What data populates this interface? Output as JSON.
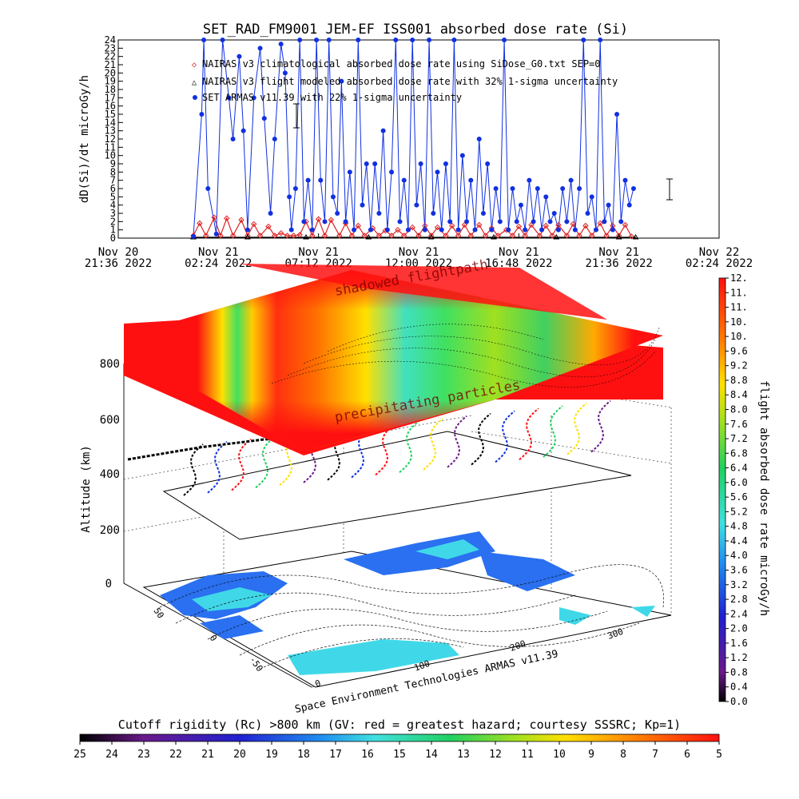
{
  "title": "SET_RAD_FM9001  JEM-EF ISS001 absorbed dose rate (Si)",
  "legend_items": [
    "NAIRAS v3 climatological absorbed dose rate using SiDose_G0.txt SEP=0",
    "NAIRAS v3 flight modeled absorbed dose rate with 32% 1-sigma uncertainty",
    "SET ARMAS v11.39 with 22% 1-sigma uncertainty"
  ],
  "annotations": {
    "shadowed": "shadowed flightpath",
    "precipitating": "precipitating particles",
    "credit": "Space Environment Technologies ARMAS v11.39"
  },
  "colorbar_right": {
    "label": "flight absorbed dose rate microGy/h",
    "ticks": [
      "0.0",
      "0.4",
      "0.8",
      "1.2",
      "1.6",
      "2.0",
      "2.4",
      "2.8",
      "3.2",
      "3.6",
      "4.0",
      "4.4",
      "4.8",
      "5.2",
      "5.6",
      "6.0",
      "6.4",
      "6.8",
      "7.2",
      "7.6",
      "8.0",
      "8.4",
      "8.8",
      "9.2",
      "9.6",
      "10.",
      "10.",
      "11.",
      "11.",
      "12."
    ]
  },
  "colorbar_bottom": {
    "label": "Cutoff rigidity (Rc) >800 km (GV: red = greatest hazard; courtesy SSSRC; Kp=1)",
    "ticks": [
      "25",
      "24",
      "23",
      "22",
      "21",
      "20",
      "19",
      "18",
      "17",
      "16",
      "15",
      "14",
      "13",
      "12",
      "11",
      "10",
      "9",
      "8",
      "7",
      "6",
      "5"
    ]
  },
  "axes3d": {
    "zlabel": "Altitude (km)",
    "zticks": [
      "0",
      "200",
      "400",
      "600",
      "800"
    ],
    "lat_ticks": [
      "50",
      "0",
      "-50"
    ],
    "lon_ticks": [
      "0",
      "100",
      "200",
      "300"
    ]
  },
  "chart_data": {
    "type": "scatter",
    "title": "SET_RAD_FM9001  JEM-EF ISS001 absorbed dose rate (Si)",
    "xlabel": "",
    "ylabel": "dD(Si)/dt microGy/h",
    "ylim": [
      0,
      24
    ],
    "yticks": [
      "0",
      "1",
      "2",
      "3",
      "4",
      "5",
      "6",
      "7",
      "8",
      "9",
      "10",
      "11",
      "12",
      "13",
      "14",
      "15",
      "16",
      "17",
      "18",
      "19",
      "20",
      "21",
      "22",
      "23",
      "24"
    ],
    "xticks": [
      {
        "day": "Nov 20",
        "time": "21:36 2022"
      },
      {
        "day": "Nov 21",
        "time": "02:24 2022"
      },
      {
        "day": "Nov 21",
        "time": "07:12 2022"
      },
      {
        "day": "Nov 21",
        "time": "12:00 2022"
      },
      {
        "day": "Nov 21",
        "time": "16:48 2022"
      },
      {
        "day": "Nov 21",
        "time": "21:36 2022"
      },
      {
        "day": "Nov 22",
        "time": "02:24 2022"
      }
    ],
    "xrange_hours": [
      0,
      28.8
    ],
    "series": [
      {
        "name": "NAIRAS v3 climatological absorbed dose rate using SiDose_G0.txt SEP=0",
        "color": "#dd2222",
        "points": [
          [
            3.6,
            0.3
          ],
          [
            3.9,
            1.8
          ],
          [
            4.2,
            0.3
          ],
          [
            4.6,
            2.5
          ],
          [
            4.9,
            0.3
          ],
          [
            5.2,
            2.4
          ],
          [
            5.5,
            0.3
          ],
          [
            5.9,
            2.2
          ],
          [
            6.2,
            0.3
          ],
          [
            6.5,
            1.7
          ],
          [
            6.8,
            0.3
          ],
          [
            7.2,
            1.4
          ],
          [
            7.5,
            0.3
          ],
          [
            7.8,
            0.6
          ],
          [
            8.1,
            0.3
          ],
          [
            8.4,
            0.3
          ],
          [
            8.7,
            0.4
          ],
          [
            9.0,
            2.0
          ],
          [
            9.3,
            0.3
          ],
          [
            9.6,
            2.3
          ],
          [
            9.9,
            0.3
          ],
          [
            10.2,
            2.2
          ],
          [
            10.6,
            0.3
          ],
          [
            10.9,
            1.8
          ],
          [
            11.2,
            0.3
          ],
          [
            11.5,
            1.5
          ],
          [
            11.8,
            0.3
          ],
          [
            12.2,
            1.2
          ],
          [
            12.5,
            0.3
          ],
          [
            12.8,
            0.9
          ],
          [
            13.1,
            0.3
          ],
          [
            13.4,
            1.0
          ],
          [
            13.7,
            0.3
          ],
          [
            14.1,
            1.3
          ],
          [
            14.4,
            0.3
          ],
          [
            14.7,
            1.5
          ],
          [
            15.0,
            0.3
          ],
          [
            15.3,
            1.3
          ],
          [
            15.7,
            0.3
          ],
          [
            16.0,
            1.5
          ],
          [
            16.3,
            0.3
          ],
          [
            16.6,
            1.6
          ],
          [
            16.9,
            0.3
          ],
          [
            17.3,
            1.6
          ],
          [
            17.6,
            0.3
          ],
          [
            17.9,
            1.2
          ],
          [
            18.2,
            0.3
          ],
          [
            18.6,
            1.0
          ],
          [
            18.9,
            0.3
          ],
          [
            19.2,
            1.4
          ],
          [
            19.5,
            0.3
          ],
          [
            19.8,
            1.6
          ],
          [
            20.2,
            0.3
          ],
          [
            20.5,
            1.5
          ],
          [
            20.8,
            0.3
          ],
          [
            21.1,
            1.6
          ],
          [
            21.5,
            0.3
          ],
          [
            21.8,
            1.7
          ],
          [
            22.1,
            0.3
          ],
          [
            22.4,
            1.5
          ],
          [
            22.7,
            0.3
          ],
          [
            23.1,
            1.8
          ],
          [
            23.4,
            0.3
          ],
          [
            23.7,
            1.5
          ],
          [
            24.0,
            0.3
          ],
          [
            24.3,
            1.6
          ],
          [
            24.6,
            0.2
          ]
        ]
      },
      {
        "name": "NAIRAS v3 flight modeled absorbed dose rate with 32% 1-sigma uncertainty",
        "color": "#000000",
        "points": [
          [
            3.6,
            0.1
          ],
          [
            6.2,
            0.1
          ],
          [
            9.0,
            0.1
          ],
          [
            12.0,
            0.1
          ],
          [
            15.0,
            0.1
          ],
          [
            18.0,
            0.1
          ],
          [
            21.0,
            0.1
          ],
          [
            24.0,
            0.1
          ],
          [
            24.8,
            0.1
          ]
        ]
      },
      {
        "name": "SET ARMAS v11.39 with 22% 1-sigma uncertainty",
        "color": "#1030e0",
        "points": [
          [
            3.6,
            0.2
          ],
          [
            4.0,
            15.0
          ],
          [
            4.1,
            24
          ],
          [
            4.3,
            6.0
          ],
          [
            4.7,
            0.5
          ],
          [
            5.0,
            24
          ],
          [
            5.3,
            17.0
          ],
          [
            5.5,
            12.0
          ],
          [
            5.8,
            22.0
          ],
          [
            6.0,
            13.0
          ],
          [
            6.2,
            1.0
          ],
          [
            6.5,
            17.0
          ],
          [
            6.8,
            23.0
          ],
          [
            7.0,
            14.5
          ],
          [
            7.3,
            3.0
          ],
          [
            7.5,
            12.0
          ],
          [
            7.8,
            23.5
          ],
          [
            8.0,
            20.0
          ],
          [
            8.2,
            5.0
          ],
          [
            8.3,
            1.0
          ],
          [
            8.5,
            6.0
          ],
          [
            8.7,
            24
          ],
          [
            8.9,
            2.0
          ],
          [
            9.1,
            7.0
          ],
          [
            9.3,
            1.0
          ],
          [
            9.5,
            24
          ],
          [
            9.7,
            7.0
          ],
          [
            9.9,
            2.0
          ],
          [
            10.1,
            24
          ],
          [
            10.3,
            5.0
          ],
          [
            10.5,
            3.0
          ],
          [
            10.7,
            19.0
          ],
          [
            10.9,
            2.0
          ],
          [
            11.1,
            8.0
          ],
          [
            11.3,
            1.0
          ],
          [
            11.5,
            24
          ],
          [
            11.7,
            4.0
          ],
          [
            11.9,
            9.0
          ],
          [
            12.1,
            1.0
          ],
          [
            12.3,
            9.0
          ],
          [
            12.5,
            3.0
          ],
          [
            12.7,
            13.0
          ],
          [
            12.9,
            1.0
          ],
          [
            13.1,
            8.0
          ],
          [
            13.3,
            24
          ],
          [
            13.5,
            2.0
          ],
          [
            13.7,
            7.0
          ],
          [
            13.9,
            1.0
          ],
          [
            14.1,
            24
          ],
          [
            14.3,
            4.0
          ],
          [
            14.5,
            9.0
          ],
          [
            14.7,
            1.0
          ],
          [
            14.9,
            24
          ],
          [
            15.1,
            3.0
          ],
          [
            15.3,
            8.0
          ],
          [
            15.5,
            1.0
          ],
          [
            15.7,
            9.0
          ],
          [
            15.9,
            2.0
          ],
          [
            16.1,
            24
          ],
          [
            16.3,
            1.0
          ],
          [
            16.5,
            10.0
          ],
          [
            16.7,
            2.0
          ],
          [
            16.9,
            7.0
          ],
          [
            17.1,
            1.0
          ],
          [
            17.3,
            12.0
          ],
          [
            17.5,
            3.0
          ],
          [
            17.7,
            9.0
          ],
          [
            17.9,
            1.0
          ],
          [
            18.1,
            6.0
          ],
          [
            18.3,
            2.0
          ],
          [
            18.5,
            24
          ],
          [
            18.7,
            1.0
          ],
          [
            18.9,
            6.0
          ],
          [
            19.1,
            2.0
          ],
          [
            19.3,
            4.0
          ],
          [
            19.5,
            1.0
          ],
          [
            19.7,
            7.0
          ],
          [
            19.9,
            2.0
          ],
          [
            20.1,
            6.0
          ],
          [
            20.3,
            1.0
          ],
          [
            20.5,
            5.0
          ],
          [
            20.7,
            2.0
          ],
          [
            20.9,
            3.0
          ],
          [
            21.1,
            1.0
          ],
          [
            21.3,
            6.0
          ],
          [
            21.5,
            2.0
          ],
          [
            21.7,
            7.0
          ],
          [
            21.9,
            1.0
          ],
          [
            22.1,
            6.0
          ],
          [
            22.3,
            24
          ],
          [
            22.5,
            3.0
          ],
          [
            22.7,
            5.0
          ],
          [
            22.9,
            1.0
          ],
          [
            23.1,
            24
          ],
          [
            23.3,
            2.0
          ],
          [
            23.5,
            4.0
          ],
          [
            23.7,
            1.0
          ],
          [
            23.9,
            15.0
          ],
          [
            24.1,
            2.0
          ],
          [
            24.3,
            7.0
          ],
          [
            24.5,
            4.0
          ],
          [
            24.7,
            6.0
          ]
        ]
      }
    ],
    "colorbar_range": [
      0,
      12
    ],
    "rigidity_range": [
      25,
      5
    ],
    "zlim": [
      0,
      900
    ],
    "legend_position": "top-left"
  }
}
